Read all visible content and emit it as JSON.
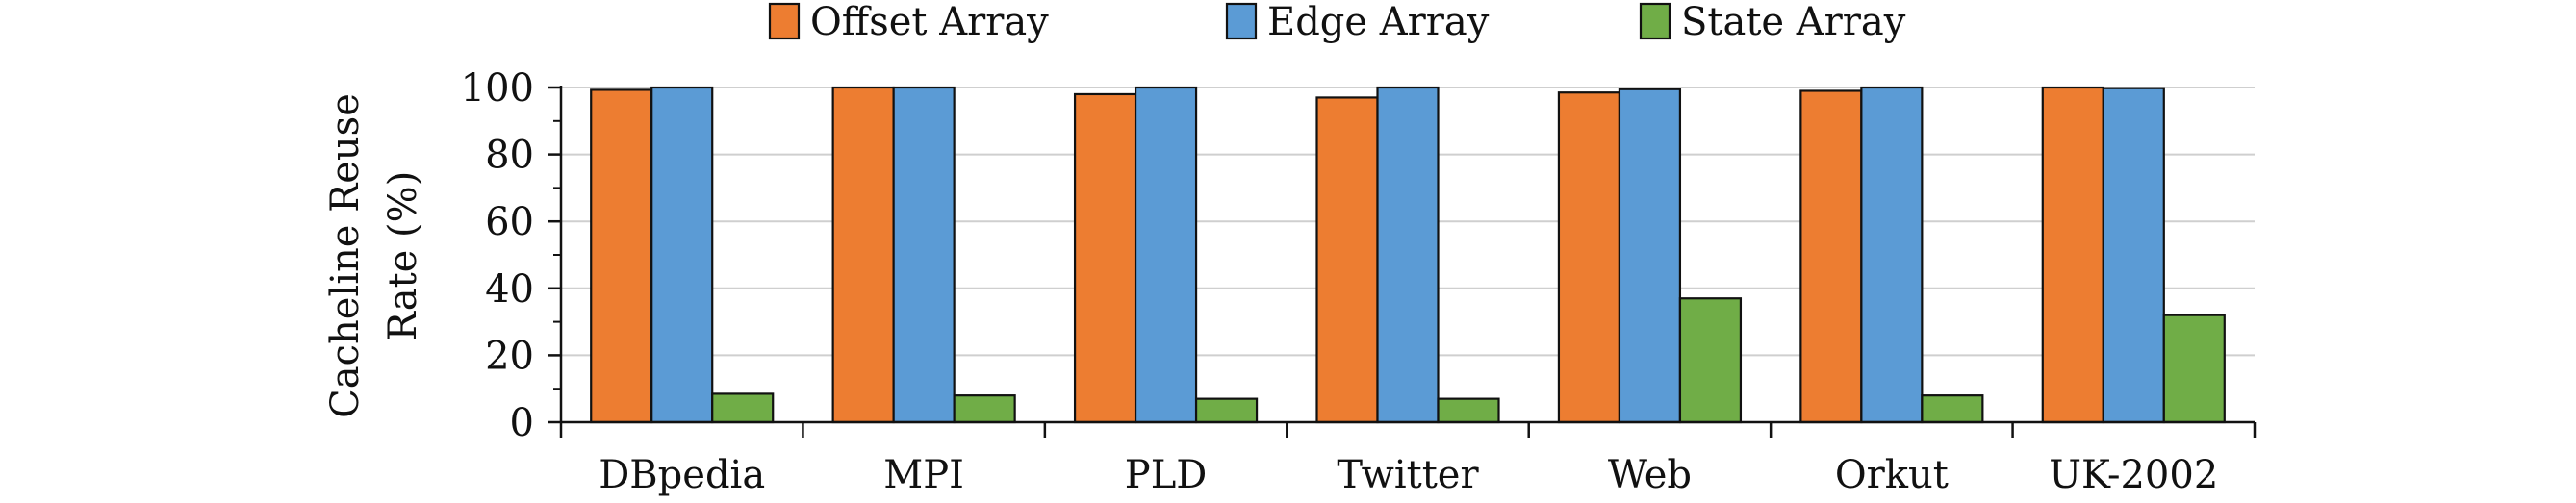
{
  "chart_data": {
    "type": "bar",
    "categories": [
      "DBpedia",
      "MPI",
      "PLD",
      "Twitter",
      "Web",
      "Orkut",
      "UK-2002"
    ],
    "series": [
      {
        "name": "Offset Array",
        "color": "#ed7d31",
        "values": [
          99.3,
          100,
          98,
          97,
          98.5,
          99,
          100
        ]
      },
      {
        "name": "Edge Array",
        "color": "#5b9bd5",
        "values": [
          100,
          100,
          100,
          100,
          99.5,
          100,
          99.8
        ]
      },
      {
        "name": "State Array",
        "color": "#70ad47",
        "values": [
          8.5,
          8,
          7,
          7,
          37,
          8,
          32
        ]
      }
    ],
    "ylabel_lines": [
      "Cacheline Reuse",
      "Rate (%)"
    ],
    "ylim": [
      0,
      100
    ],
    "yticks": [
      0,
      20,
      40,
      60,
      80,
      100
    ],
    "grid": true,
    "legend_position": "top"
  }
}
